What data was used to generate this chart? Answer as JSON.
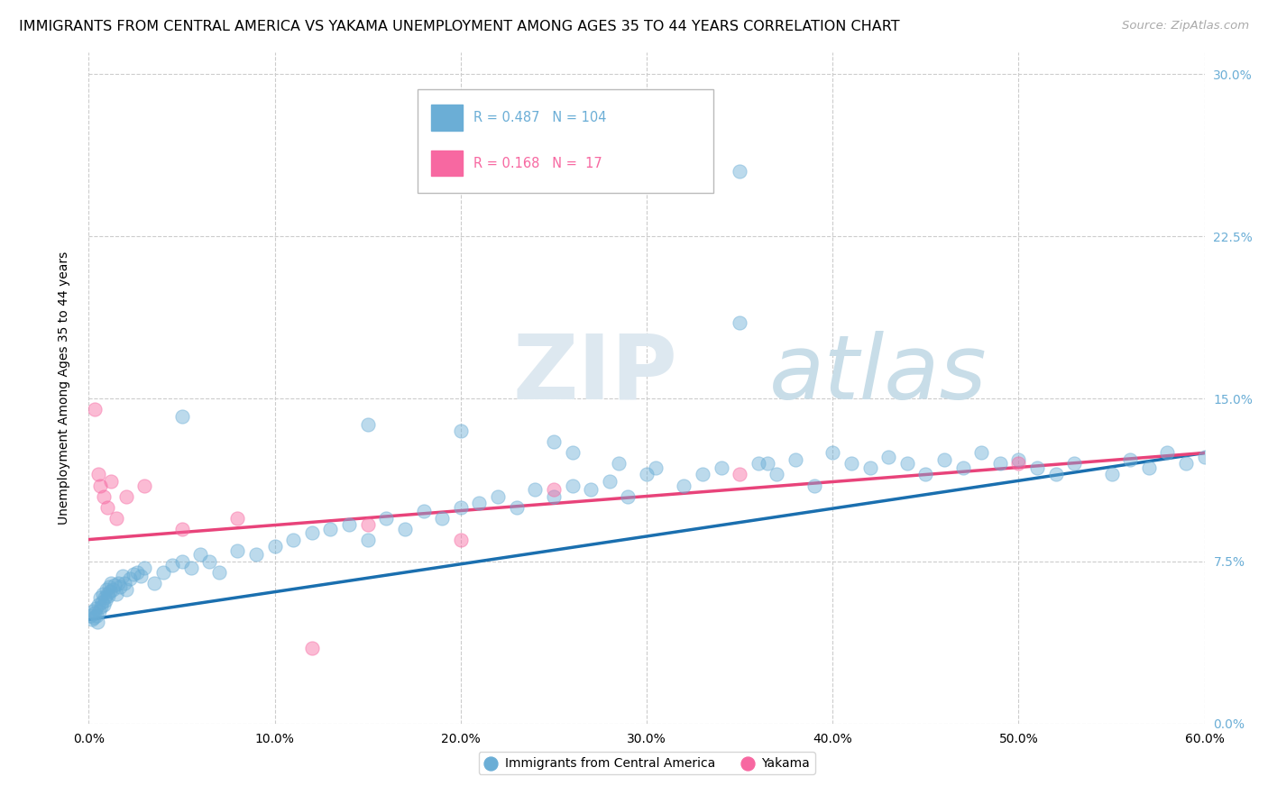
{
  "title": "IMMIGRANTS FROM CENTRAL AMERICA VS YAKAMA UNEMPLOYMENT AMONG AGES 35 TO 44 YEARS CORRELATION CHART",
  "source": "Source: ZipAtlas.com",
  "xlabel_ticks": [
    "0.0%",
    "10.0%",
    "20.0%",
    "30.0%",
    "40.0%",
    "50.0%",
    "60.0%"
  ],
  "xlabel_vals": [
    0,
    10,
    20,
    30,
    40,
    50,
    60
  ],
  "ylabel_ticks": [
    "0.0%",
    "7.5%",
    "15.0%",
    "22.5%",
    "30.0%"
  ],
  "ylabel_vals": [
    0,
    7.5,
    15.0,
    22.5,
    30.0
  ],
  "ylabel_label": "Unemployment Among Ages 35 to 44 years",
  "legend_entries": [
    {
      "label": "Immigrants from Central America",
      "color": "#6baed6",
      "R": "0.487",
      "N": "104"
    },
    {
      "label": "Yakama",
      "color": "#f768a1",
      "R": "0.168",
      "N": "17"
    }
  ],
  "blue_color": "#6baed6",
  "pink_color": "#f768a1",
  "blue_line_color": "#1a6faf",
  "pink_line_color": "#e8437a",
  "watermark_zip": "ZIP",
  "watermark_atlas": "atlas",
  "blue_scatter_x": [
    0.1,
    0.15,
    0.2,
    0.25,
    0.3,
    0.35,
    0.4,
    0.45,
    0.5,
    0.55,
    0.6,
    0.65,
    0.7,
    0.75,
    0.8,
    0.85,
    0.9,
    0.95,
    1.0,
    1.05,
    1.1,
    1.15,
    1.2,
    1.3,
    1.4,
    1.5,
    1.6,
    1.7,
    1.8,
    1.9,
    2.0,
    2.2,
    2.4,
    2.6,
    2.8,
    3.0,
    3.5,
    4.0,
    4.5,
    5.0,
    5.5,
    6.0,
    6.5,
    7.0,
    8.0,
    9.0,
    10.0,
    11.0,
    12.0,
    13.0,
    14.0,
    15.0,
    16.0,
    17.0,
    18.0,
    19.0,
    20.0,
    21.0,
    22.0,
    23.0,
    24.0,
    25.0,
    26.0,
    27.0,
    28.0,
    29.0,
    30.0,
    32.0,
    33.0,
    34.0,
    35.0,
    36.0,
    37.0,
    38.0,
    39.0,
    40.0,
    41.0,
    42.0,
    43.0,
    44.0,
    45.0,
    46.0,
    47.0,
    48.0,
    49.0,
    50.0,
    51.0,
    52.0,
    53.0,
    55.0,
    56.0,
    57.0,
    58.0,
    59.0,
    60.0,
    35.0,
    36.5,
    26.0,
    28.5,
    30.5,
    5.0,
    15.0,
    20.0,
    25.0
  ],
  "blue_scatter_y": [
    5.0,
    4.8,
    5.2,
    4.9,
    5.1,
    5.3,
    5.0,
    4.7,
    5.5,
    5.2,
    5.8,
    5.4,
    5.6,
    6.0,
    5.5,
    5.8,
    5.7,
    6.2,
    6.0,
    5.9,
    6.3,
    6.1,
    6.5,
    6.2,
    6.4,
    6.0,
    6.5,
    6.3,
    6.8,
    6.5,
    6.2,
    6.7,
    6.9,
    7.0,
    6.8,
    7.2,
    6.5,
    7.0,
    7.3,
    7.5,
    7.2,
    7.8,
    7.5,
    7.0,
    8.0,
    7.8,
    8.2,
    8.5,
    8.8,
    9.0,
    9.2,
    8.5,
    9.5,
    9.0,
    9.8,
    9.5,
    10.0,
    10.2,
    10.5,
    10.0,
    10.8,
    10.5,
    11.0,
    10.8,
    11.2,
    10.5,
    11.5,
    11.0,
    11.5,
    11.8,
    25.5,
    12.0,
    11.5,
    12.2,
    11.0,
    12.5,
    12.0,
    11.8,
    12.3,
    12.0,
    11.5,
    12.2,
    11.8,
    12.5,
    12.0,
    12.2,
    11.8,
    11.5,
    12.0,
    11.5,
    12.2,
    11.8,
    12.5,
    12.0,
    12.3,
    18.5,
    12.0,
    12.5,
    12.0,
    11.8,
    14.2,
    13.8,
    13.5,
    13.0
  ],
  "pink_scatter_x": [
    0.3,
    0.5,
    0.6,
    0.8,
    1.0,
    1.2,
    1.5,
    2.0,
    3.0,
    5.0,
    8.0,
    12.0,
    15.0,
    20.0,
    25.0,
    35.0,
    50.0
  ],
  "pink_scatter_y": [
    14.5,
    11.5,
    11.0,
    10.5,
    10.0,
    11.2,
    9.5,
    10.5,
    11.0,
    9.0,
    9.5,
    3.5,
    9.2,
    8.5,
    10.8,
    11.5,
    12.0
  ],
  "blue_trend_x": [
    0,
    60
  ],
  "blue_trend_y": [
    4.8,
    12.5
  ],
  "pink_trend_x": [
    0,
    60
  ],
  "pink_trend_y": [
    8.5,
    12.5
  ],
  "xlim": [
    0,
    60
  ],
  "ylim": [
    0,
    31
  ],
  "title_fontsize": 11.5,
  "source_fontsize": 9.5,
  "tick_fontsize": 10,
  "ylabel_fontsize": 10
}
